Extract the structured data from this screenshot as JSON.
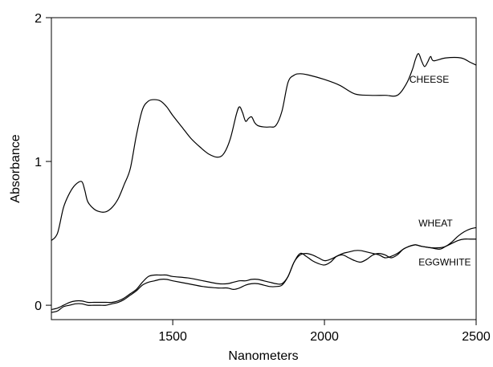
{
  "chart_data": {
    "type": "line",
    "xlabel": "Nanometers",
    "ylabel": "Absorbance",
    "xlim": [
      1100,
      2500
    ],
    "ylim": [
      -0.1,
      2
    ],
    "xticks": [
      1500,
      2000,
      2500
    ],
    "yticks": [
      0,
      1,
      2
    ],
    "xtick_labels": [
      "1500",
      "2000",
      "2500"
    ],
    "ytick_labels": [
      "0",
      "1",
      "2"
    ],
    "grid": false,
    "series": [
      {
        "name": "CHEESE",
        "label_x": 2280,
        "label_y": 1.57,
        "x": [
          1100,
          1120,
          1140,
          1160,
          1180,
          1200,
          1210,
          1220,
          1240,
          1260,
          1280,
          1300,
          1320,
          1340,
          1360,
          1380,
          1400,
          1420,
          1440,
          1460,
          1480,
          1500,
          1530,
          1560,
          1590,
          1620,
          1650,
          1670,
          1690,
          1710,
          1720,
          1730,
          1740,
          1750,
          1760,
          1770,
          1780,
          1800,
          1820,
          1840,
          1860,
          1880,
          1900,
          1920,
          1950,
          2000,
          2050,
          2100,
          2150,
          2200,
          2240,
          2270,
          2290,
          2300,
          2310,
          2320,
          2330,
          2340,
          2350,
          2360,
          2400,
          2450,
          2480,
          2500
        ],
        "values": [
          0.45,
          0.5,
          0.68,
          0.78,
          0.84,
          0.86,
          0.8,
          0.72,
          0.67,
          0.65,
          0.65,
          0.68,
          0.74,
          0.84,
          0.95,
          1.18,
          1.36,
          1.42,
          1.43,
          1.42,
          1.38,
          1.32,
          1.24,
          1.16,
          1.1,
          1.05,
          1.03,
          1.06,
          1.16,
          1.33,
          1.38,
          1.34,
          1.28,
          1.3,
          1.31,
          1.27,
          1.25,
          1.24,
          1.24,
          1.25,
          1.35,
          1.55,
          1.6,
          1.61,
          1.6,
          1.57,
          1.53,
          1.47,
          1.46,
          1.46,
          1.46,
          1.54,
          1.64,
          1.71,
          1.75,
          1.7,
          1.66,
          1.69,
          1.73,
          1.7,
          1.72,
          1.72,
          1.69,
          1.67
        ]
      },
      {
        "name": "WHEAT",
        "label_x": 2310,
        "label_y": 0.57,
        "x": [
          1100,
          1120,
          1140,
          1160,
          1180,
          1200,
          1220,
          1240,
          1260,
          1280,
          1300,
          1320,
          1340,
          1360,
          1380,
          1400,
          1420,
          1440,
          1460,
          1480,
          1500,
          1550,
          1600,
          1650,
          1680,
          1700,
          1720,
          1740,
          1760,
          1780,
          1800,
          1820,
          1840,
          1860,
          1880,
          1900,
          1920,
          1940,
          1960,
          1980,
          2000,
          2020,
          2040,
          2060,
          2080,
          2100,
          2120,
          2140,
          2160,
          2180,
          2200,
          2220,
          2240,
          2260,
          2280,
          2300,
          2320,
          2350,
          2380,
          2400,
          2420,
          2440,
          2460,
          2480,
          2500
        ],
        "values": [
          -0.05,
          -0.04,
          -0.01,
          0.0,
          0.01,
          0.01,
          0.0,
          0.0,
          0.0,
          0.0,
          0.01,
          0.02,
          0.04,
          0.07,
          0.1,
          0.14,
          0.16,
          0.17,
          0.18,
          0.18,
          0.17,
          0.15,
          0.13,
          0.12,
          0.12,
          0.11,
          0.12,
          0.14,
          0.15,
          0.15,
          0.14,
          0.13,
          0.13,
          0.14,
          0.2,
          0.3,
          0.35,
          0.36,
          0.35,
          0.33,
          0.31,
          0.32,
          0.34,
          0.36,
          0.37,
          0.38,
          0.38,
          0.37,
          0.36,
          0.35,
          0.33,
          0.34,
          0.36,
          0.39,
          0.41,
          0.42,
          0.41,
          0.4,
          0.4,
          0.41,
          0.44,
          0.48,
          0.51,
          0.53,
          0.54
        ]
      },
      {
        "name": "EGGWHITE",
        "label_x": 2310,
        "label_y": 0.3,
        "x": [
          1100,
          1120,
          1140,
          1160,
          1180,
          1200,
          1220,
          1240,
          1260,
          1280,
          1300,
          1320,
          1340,
          1360,
          1380,
          1400,
          1420,
          1440,
          1460,
          1480,
          1500,
          1550,
          1600,
          1650,
          1680,
          1700,
          1720,
          1740,
          1760,
          1780,
          1800,
          1820,
          1840,
          1860,
          1880,
          1900,
          1920,
          1940,
          1960,
          1980,
          2000,
          2020,
          2040,
          2060,
          2080,
          2100,
          2120,
          2140,
          2160,
          2180,
          2200,
          2220,
          2240,
          2260,
          2280,
          2300,
          2320,
          2350,
          2380,
          2400,
          2420,
          2440,
          2460,
          2480,
          2500
        ],
        "values": [
          -0.03,
          -0.02,
          0.0,
          0.02,
          0.03,
          0.03,
          0.02,
          0.02,
          0.02,
          0.02,
          0.02,
          0.03,
          0.05,
          0.08,
          0.11,
          0.16,
          0.2,
          0.21,
          0.21,
          0.21,
          0.2,
          0.19,
          0.17,
          0.15,
          0.15,
          0.16,
          0.17,
          0.17,
          0.18,
          0.18,
          0.17,
          0.16,
          0.15,
          0.15,
          0.2,
          0.3,
          0.36,
          0.34,
          0.31,
          0.29,
          0.28,
          0.3,
          0.34,
          0.35,
          0.33,
          0.31,
          0.3,
          0.32,
          0.35,
          0.36,
          0.35,
          0.33,
          0.35,
          0.39,
          0.41,
          0.42,
          0.41,
          0.4,
          0.39,
          0.41,
          0.43,
          0.45,
          0.46,
          0.46,
          0.46
        ]
      }
    ]
  }
}
